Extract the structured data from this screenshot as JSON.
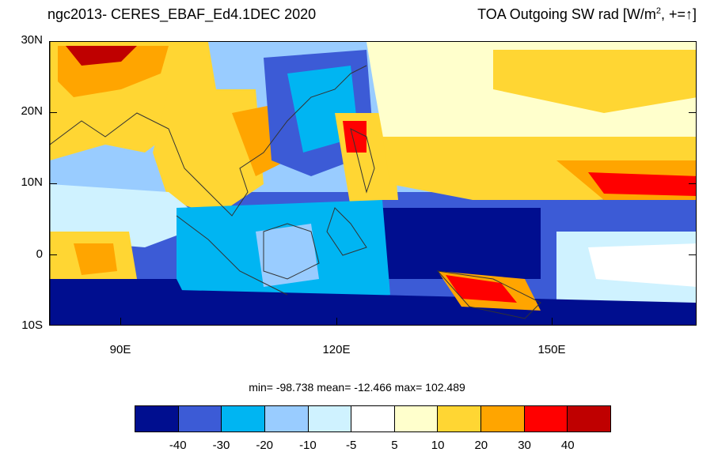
{
  "header": {
    "left_title": "ngc2013- CERES_EBAF_Ed4.1DEC 2020",
    "right_title_main": "TOA Outgoing SW rad [W/m",
    "right_title_sup": "2",
    "right_title_tail": ", +=↑]"
  },
  "axes": {
    "lat_labels": [
      "30N",
      "20N",
      "10N",
      "0",
      "10S"
    ],
    "lon_labels": [
      "90E",
      "120E",
      "150E"
    ]
  },
  "stats": {
    "text": "min= -98.738  mean= -12.466  max= 102.489"
  },
  "colorbar": {
    "colors": [
      "#000e8f",
      "#3c5bd6",
      "#00b5f2",
      "#99ccff",
      "#cff2ff",
      "#ffffff",
      "#ffffcc",
      "#ffd633",
      "#ffa500",
      "#ff0000",
      "#bf0000"
    ],
    "labels": [
      "-40",
      "-30",
      "-20",
      "-10",
      "-5",
      "5",
      "10",
      "20",
      "30",
      "40"
    ]
  }
}
